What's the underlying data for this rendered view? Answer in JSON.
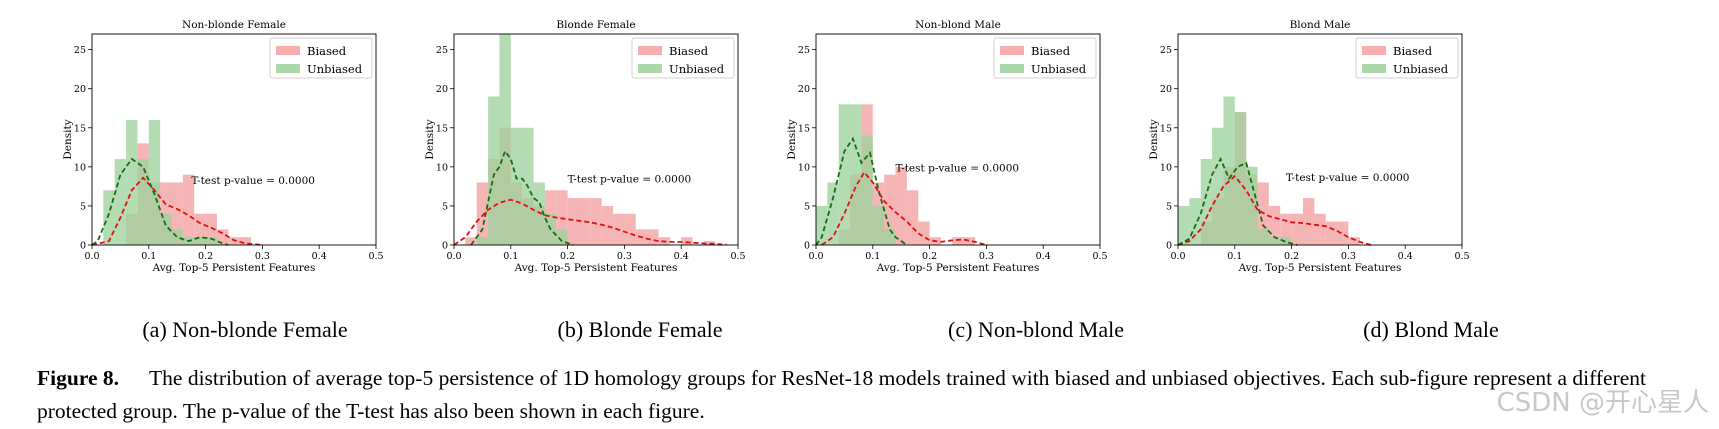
{
  "chart_data": [
    {
      "type": "bar",
      "title": "Non-blonde Female",
      "xlabel": "Avg. Top-5 Persistent Features",
      "ylabel": "Density",
      "xlim": [
        0.0,
        0.5
      ],
      "ylim": [
        0,
        27
      ],
      "xticks": [
        "0.0",
        "0.1",
        "0.2",
        "0.3",
        "0.4",
        "0.5"
      ],
      "yticks": [
        "0",
        "5",
        "10",
        "15",
        "20",
        "25"
      ],
      "legend": "top-right",
      "annotation": "T-test p-value = 0.0000",
      "annotation_pos": [
        0.175,
        7.8
      ],
      "series": [
        {
          "name": "Biased",
          "color": "#f4a0a0",
          "bin_width": 0.02,
          "bins": [
            [
              0.06,
              4
            ],
            [
              0.08,
              13
            ],
            [
              0.1,
              8
            ],
            [
              0.12,
              8
            ],
            [
              0.14,
              8
            ],
            [
              0.16,
              9
            ],
            [
              0.18,
              4
            ],
            [
              0.2,
              4
            ],
            [
              0.22,
              2
            ],
            [
              0.24,
              1
            ],
            [
              0.26,
              1
            ]
          ],
          "kde": [
            [
              0.0,
              0
            ],
            [
              0.03,
              0.5
            ],
            [
              0.05,
              3.5
            ],
            [
              0.07,
              7
            ],
            [
              0.09,
              8.6
            ],
            [
              0.11,
              7
            ],
            [
              0.13,
              5.2
            ],
            [
              0.15,
              4.6
            ],
            [
              0.17,
              3.8
            ],
            [
              0.19,
              2.8
            ],
            [
              0.21,
              2.2
            ],
            [
              0.23,
              1.5
            ],
            [
              0.25,
              0.6
            ],
            [
              0.27,
              0.2
            ],
            [
              0.3,
              0
            ]
          ]
        },
        {
          "name": "Unbiased",
          "color": "#9ed29e",
          "bin_width": 0.02,
          "bins": [
            [
              0.02,
              7
            ],
            [
              0.04,
              11
            ],
            [
              0.06,
              16
            ],
            [
              0.08,
              11
            ],
            [
              0.1,
              16
            ],
            [
              0.12,
              4
            ],
            [
              0.14,
              2
            ],
            [
              0.16,
              1
            ],
            [
              0.18,
              1
            ],
            [
              0.2,
              1
            ]
          ],
          "kde": [
            [
              0.0,
              0
            ],
            [
              0.01,
              0.5
            ],
            [
              0.03,
              4
            ],
            [
              0.05,
              9
            ],
            [
              0.07,
              11
            ],
            [
              0.09,
              10
            ],
            [
              0.11,
              6.5
            ],
            [
              0.13,
              2.5
            ],
            [
              0.15,
              1
            ],
            [
              0.17,
              0.5
            ],
            [
              0.19,
              1
            ],
            [
              0.21,
              0.8
            ],
            [
              0.23,
              0.2
            ],
            [
              0.24,
              0
            ]
          ]
        }
      ]
    },
    {
      "type": "bar",
      "title": "Blonde Female",
      "xlabel": "Avg. Top-5 Persistent Features",
      "ylabel": "Density",
      "xlim": [
        0.0,
        0.5
      ],
      "ylim": [
        0,
        27
      ],
      "xticks": [
        "0.0",
        "0.1",
        "0.2",
        "0.3",
        "0.4",
        "0.5"
      ],
      "yticks": [
        "0",
        "5",
        "10",
        "15",
        "20",
        "25"
      ],
      "legend": "top-right",
      "annotation": "T-test p-value = 0.0000",
      "annotation_pos": [
        0.2,
        8.0
      ],
      "series": [
        {
          "name": "Biased",
          "color": "#f4a0a0",
          "bin_width": 0.02,
          "bins": [
            [
              0.02,
              1
            ],
            [
              0.04,
              8
            ],
            [
              0.06,
              11
            ],
            [
              0.08,
              15
            ],
            [
              0.1,
              8
            ],
            [
              0.12,
              6
            ],
            [
              0.14,
              5
            ],
            [
              0.16,
              7
            ],
            [
              0.18,
              7
            ],
            [
              0.2,
              6
            ],
            [
              0.22,
              6
            ],
            [
              0.24,
              6
            ],
            [
              0.26,
              5
            ],
            [
              0.28,
              4
            ],
            [
              0.3,
              4
            ],
            [
              0.32,
              2
            ],
            [
              0.34,
              2
            ],
            [
              0.36,
              1
            ],
            [
              0.4,
              1
            ],
            [
              0.44,
              0.5
            ]
          ],
          "kde": [
            [
              0.0,
              0
            ],
            [
              0.02,
              1
            ],
            [
              0.04,
              3
            ],
            [
              0.06,
              4.5
            ],
            [
              0.08,
              5.4
            ],
            [
              0.1,
              5.8
            ],
            [
              0.12,
              5.3
            ],
            [
              0.14,
              4.5
            ],
            [
              0.16,
              3.8
            ],
            [
              0.18,
              3.5
            ],
            [
              0.2,
              3.3
            ],
            [
              0.22,
              3.1
            ],
            [
              0.24,
              2.9
            ],
            [
              0.26,
              2.6
            ],
            [
              0.28,
              2.2
            ],
            [
              0.3,
              1.7
            ],
            [
              0.32,
              1.2
            ],
            [
              0.34,
              0.8
            ],
            [
              0.36,
              0.5
            ],
            [
              0.38,
              0.4
            ],
            [
              0.4,
              0.4
            ],
            [
              0.42,
              0.3
            ],
            [
              0.44,
              0.2
            ],
            [
              0.48,
              0.05
            ]
          ]
        },
        {
          "name": "Unbiased",
          "color": "#9ed29e",
          "bin_width": 0.02,
          "bins": [
            [
              0.04,
              1
            ],
            [
              0.06,
              19
            ],
            [
              0.08,
              27
            ],
            [
              0.1,
              15
            ],
            [
              0.12,
              15
            ],
            [
              0.14,
              8
            ],
            [
              0.16,
              4
            ],
            [
              0.18,
              2
            ]
          ],
          "kde": [
            [
              0.03,
              0
            ],
            [
              0.05,
              2
            ],
            [
              0.07,
              9
            ],
            [
              0.08,
              10
            ],
            [
              0.09,
              12
            ],
            [
              0.1,
              11
            ],
            [
              0.11,
              8.5
            ],
            [
              0.12,
              8.5
            ],
            [
              0.13,
              7.5
            ],
            [
              0.14,
              6
            ],
            [
              0.15,
              5.5
            ],
            [
              0.16,
              3.5
            ],
            [
              0.17,
              2
            ],
            [
              0.19,
              0.5
            ],
            [
              0.21,
              0
            ]
          ]
        }
      ]
    },
    {
      "type": "bar",
      "title": "Non-blond Male",
      "xlabel": "Avg. Top-5 Persistent Features",
      "ylabel": "Density",
      "xlim": [
        0.0,
        0.5
      ],
      "ylim": [
        0,
        27
      ],
      "xticks": [
        "0.0",
        "0.1",
        "0.2",
        "0.3",
        "0.4",
        "0.5"
      ],
      "yticks": [
        "0",
        "5",
        "10",
        "15",
        "20",
        "25"
      ],
      "legend": "top-right",
      "annotation": "T-test p-value = 0.0000",
      "annotation_pos": [
        0.14,
        9.4
      ],
      "series": [
        {
          "name": "Biased",
          "color": "#f4a0a0",
          "bin_width": 0.02,
          "bins": [
            [
              0.04,
              2
            ],
            [
              0.06,
              9
            ],
            [
              0.08,
              18
            ],
            [
              0.1,
              8
            ],
            [
              0.12,
              9
            ],
            [
              0.14,
              10
            ],
            [
              0.16,
              7
            ],
            [
              0.18,
              3
            ],
            [
              0.2,
              1
            ],
            [
              0.24,
              1
            ],
            [
              0.26,
              1
            ]
          ],
          "kde": [
            [
              0.01,
              0
            ],
            [
              0.03,
              1
            ],
            [
              0.05,
              4
            ],
            [
              0.07,
              7.5
            ],
            [
              0.085,
              9.3
            ],
            [
              0.1,
              8
            ],
            [
              0.12,
              5.6
            ],
            [
              0.14,
              4.2
            ],
            [
              0.16,
              3
            ],
            [
              0.18,
              1.5
            ],
            [
              0.2,
              0.6
            ],
            [
              0.22,
              0.4
            ],
            [
              0.24,
              0.6
            ],
            [
              0.26,
              0.7
            ],
            [
              0.28,
              0.4
            ],
            [
              0.3,
              0
            ]
          ]
        },
        {
          "name": "Unbiased",
          "color": "#9ed29e",
          "bin_width": 0.02,
          "bins": [
            [
              0.0,
              5
            ],
            [
              0.02,
              8
            ],
            [
              0.04,
              18
            ],
            [
              0.06,
              18
            ],
            [
              0.08,
              14
            ],
            [
              0.1,
              5
            ],
            [
              0.12,
              2
            ]
          ],
          "kde": [
            [
              0.0,
              0
            ],
            [
              0.01,
              1
            ],
            [
              0.03,
              6
            ],
            [
              0.05,
              12
            ],
            [
              0.065,
              13.6
            ],
            [
              0.08,
              10.5
            ],
            [
              0.095,
              11.8
            ],
            [
              0.11,
              7
            ],
            [
              0.13,
              2
            ],
            [
              0.14,
              1
            ],
            [
              0.16,
              0
            ]
          ]
        }
      ]
    },
    {
      "type": "bar",
      "title": "Blond Male",
      "xlabel": "Avg. Top-5 Persistent Features",
      "ylabel": "Density",
      "xlim": [
        0.0,
        0.5
      ],
      "ylim": [
        0,
        27
      ],
      "xticks": [
        "0.0",
        "0.1",
        "0.2",
        "0.3",
        "0.4",
        "0.5"
      ],
      "yticks": [
        "0",
        "5",
        "10",
        "15",
        "20",
        "25"
      ],
      "legend": "top-right",
      "annotation": "T-test p-value = 0.0000",
      "annotation_pos": [
        0.19,
        8.2
      ],
      "series": [
        {
          "name": "Biased",
          "color": "#f4a0a0",
          "bin_width": 0.02,
          "bins": [
            [
              0.04,
              3
            ],
            [
              0.06,
              6
            ],
            [
              0.08,
              10
            ],
            [
              0.1,
              17
            ],
            [
              0.12,
              9
            ],
            [
              0.14,
              8
            ],
            [
              0.16,
              5
            ],
            [
              0.18,
              4
            ],
            [
              0.2,
              4
            ],
            [
              0.22,
              6
            ],
            [
              0.24,
              4
            ],
            [
              0.26,
              3
            ],
            [
              0.28,
              3
            ],
            [
              0.3,
              1
            ]
          ],
          "kde": [
            [
              0.0,
              0
            ],
            [
              0.02,
              0.5
            ],
            [
              0.04,
              2
            ],
            [
              0.06,
              5
            ],
            [
              0.08,
              7.5
            ],
            [
              0.1,
              8.8
            ],
            [
              0.12,
              7
            ],
            [
              0.14,
              4.5
            ],
            [
              0.16,
              3.7
            ],
            [
              0.18,
              3.3
            ],
            [
              0.2,
              2.9
            ],
            [
              0.22,
              2.8
            ],
            [
              0.24,
              2.6
            ],
            [
              0.26,
              2.4
            ],
            [
              0.28,
              1.8
            ],
            [
              0.3,
              1
            ],
            [
              0.32,
              0.4
            ],
            [
              0.34,
              0
            ]
          ]
        },
        {
          "name": "Unbiased",
          "color": "#9ed29e",
          "bin_width": 0.02,
          "bins": [
            [
              0.0,
              5
            ],
            [
              0.02,
              6
            ],
            [
              0.04,
              11
            ],
            [
              0.06,
              15
            ],
            [
              0.08,
              19
            ],
            [
              0.1,
              17
            ],
            [
              0.12,
              10
            ],
            [
              0.14,
              2
            ],
            [
              0.16,
              1
            ],
            [
              0.18,
              1
            ]
          ],
          "kde": [
            [
              0.0,
              0
            ],
            [
              0.02,
              0.8
            ],
            [
              0.04,
              4
            ],
            [
              0.06,
              9
            ],
            [
              0.075,
              11
            ],
            [
              0.09,
              8.5
            ],
            [
              0.105,
              10
            ],
            [
              0.12,
              10.5
            ],
            [
              0.135,
              6.5
            ],
            [
              0.15,
              2.5
            ],
            [
              0.17,
              1
            ],
            [
              0.19,
              0.4
            ],
            [
              0.21,
              0
            ]
          ]
        }
      ]
    }
  ],
  "subfigures": [
    {
      "label": "(a) Non-blonde Female"
    },
    {
      "label": "(b) Blonde Female"
    },
    {
      "label": "(c) Non-blond Male"
    },
    {
      "label": "(d) Blond Male"
    }
  ],
  "caption": {
    "figure": "Figure 8.",
    "text": "The distribution of average top-5 persistence of 1D homology groups for ResNet-18 models trained with biased and unbiased objectives. Each sub-figure represent a different protected group. The p-value of the T-test has also been shown in each figure."
  },
  "watermark": "CSDN @开心星人"
}
